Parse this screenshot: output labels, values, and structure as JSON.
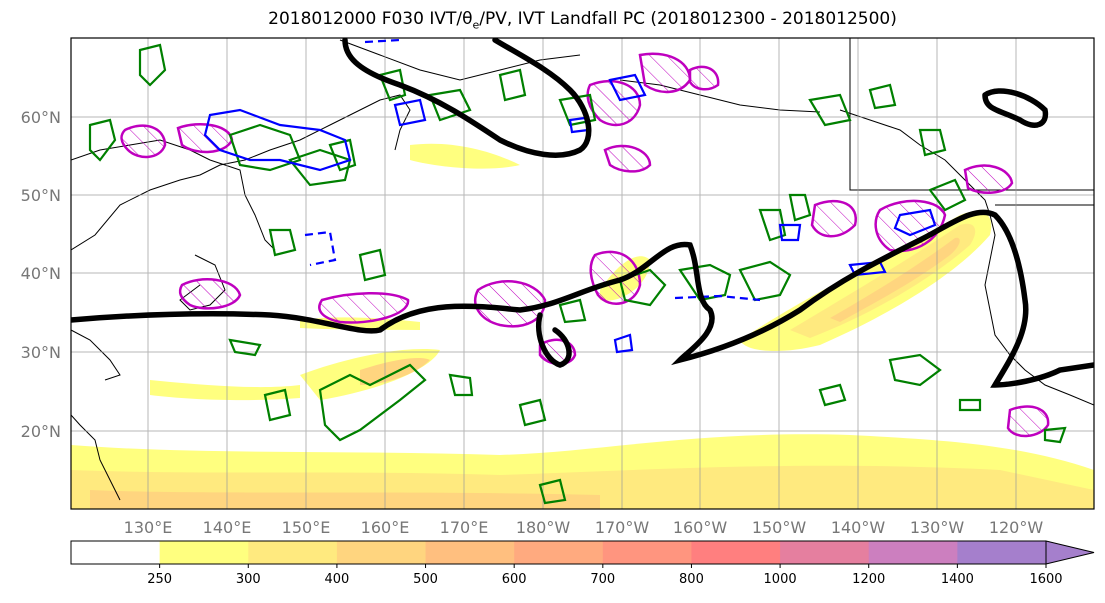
{
  "title": "2018012000 F030 IVT/θe/PV, IVT Landfall PC (2018012300 - 2018012500)",
  "title_parts": {
    "before_sub": "2018012000 F030 IVT/θ",
    "sub": "e",
    "after_sub": "/PV, IVT Landfall PC (2018012300 - 2018012500)"
  },
  "map": {
    "lat_labels": [
      "60°N",
      "50°N",
      "40°N",
      "30°N",
      "20°N"
    ],
    "lon_labels": [
      "130°E",
      "140°E",
      "150°E",
      "160°E",
      "170°E",
      "180°W",
      "170°W",
      "160°W",
      "150°W",
      "140°W",
      "130°W",
      "120°W"
    ]
  },
  "colorbar": {
    "ticks": [
      "250",
      "300",
      "400",
      "500",
      "600",
      "700",
      "800",
      "1000",
      "1200",
      "1400",
      "1600"
    ],
    "colors": [
      "#ffffff",
      "#ffff7f",
      "#ffea7f",
      "#ffd57f",
      "#ffbf7f",
      "#ffaa7f",
      "#ff957f",
      "#ff7f7f",
      "#e57f9f",
      "#cc7fbf",
      "#a57fcc"
    ],
    "extend": "max"
  },
  "contour_colors": {
    "thetae": "#000000",
    "pv_pos": "#008000",
    "pv_neg": "#0000ff",
    "landfall": "#bf00bf"
  }
}
